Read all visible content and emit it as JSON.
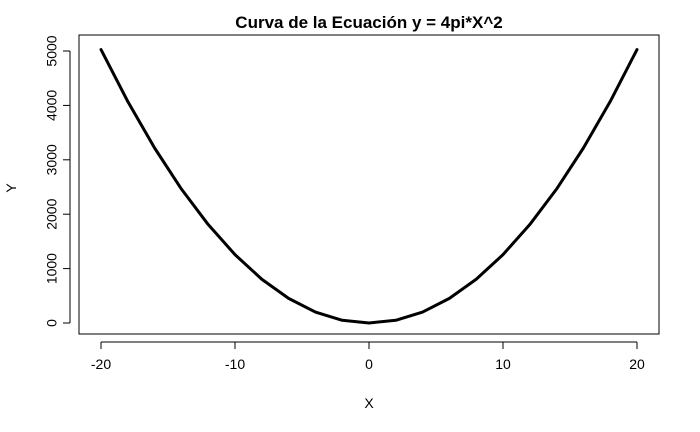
{
  "chart_data": {
    "type": "line",
    "title": "Curva de la Ecuación y = 4pi*X^2",
    "xlabel": "X",
    "ylabel": "Y",
    "xlim": [
      -20,
      20
    ],
    "ylim": [
      0,
      5000
    ],
    "x_ticks": [
      -20,
      -10,
      0,
      10,
      20
    ],
    "y_ticks": [
      0,
      1000,
      2000,
      3000,
      4000,
      5000
    ],
    "x_tick_labels": [
      "-20",
      "-10",
      "0",
      "10",
      "20"
    ],
    "y_tick_labels": [
      "0",
      "1000",
      "2000",
      "3000",
      "4000",
      "5000"
    ],
    "series": [
      {
        "name": "y = 4pi*X^2",
        "color": "#000000",
        "x": [
          -20,
          -18,
          -16,
          -14,
          -12,
          -10,
          -8,
          -6,
          -4,
          -2,
          0,
          2,
          4,
          6,
          8,
          10,
          12,
          14,
          16,
          18,
          20
        ],
        "y": [
          5026.5,
          4071.5,
          3217.0,
          2463.0,
          1809.6,
          1256.6,
          804.2,
          452.4,
          201.1,
          50.3,
          0,
          50.3,
          201.1,
          452.4,
          804.2,
          1256.6,
          1809.6,
          2463.0,
          3217.0,
          4071.5,
          5026.5
        ]
      }
    ]
  }
}
